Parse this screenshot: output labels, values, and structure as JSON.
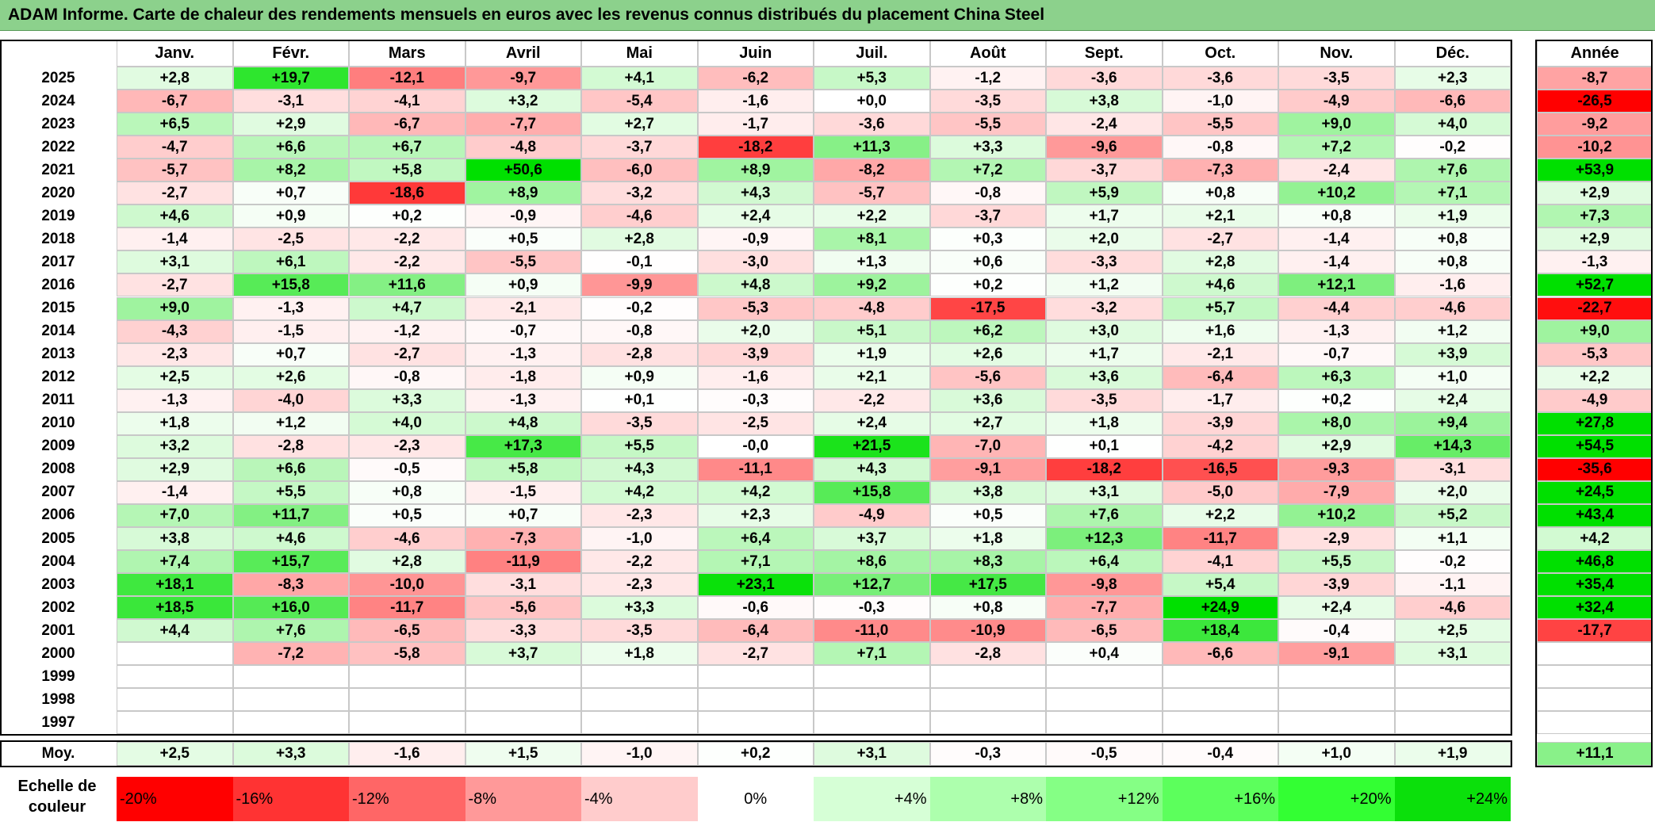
{
  "title": "ADAM Informe. Carte de chaleur des rendements mensuels en euros avec les revenus connus distribués du placement China Steel",
  "chart_data": {
    "type": "heatmap",
    "months": [
      "Janv.",
      "Févr.",
      "Mars",
      "Avril",
      "Mai",
      "Juin",
      "Juil.",
      "Août",
      "Sept.",
      "Oct.",
      "Nov.",
      "Déc."
    ],
    "annual_header": "Année",
    "avg_label": "Moy.",
    "rows": [
      {
        "year": "2025",
        "values": [
          "+2,8",
          "+19,7",
          "-12,1",
          "-9,7",
          "+4,1",
          "-6,2",
          "+5,3",
          "-1,2",
          "-3,6",
          "-3,6",
          "-3,5",
          "+2,3"
        ],
        "annual": "-8,7"
      },
      {
        "year": "2024",
        "values": [
          "-6,7",
          "-3,1",
          "-4,1",
          "+3,2",
          "-5,4",
          "-1,6",
          "+0,0",
          "-3,5",
          "+3,8",
          "-1,0",
          "-4,9",
          "-6,6"
        ],
        "annual": "-26,5"
      },
      {
        "year": "2023",
        "values": [
          "+6,5",
          "+2,9",
          "-6,7",
          "-7,7",
          "+2,7",
          "-1,7",
          "-3,6",
          "-5,5",
          "-2,4",
          "-5,5",
          "+9,0",
          "+4,0"
        ],
        "annual": "-9,2"
      },
      {
        "year": "2022",
        "values": [
          "-4,7",
          "+6,6",
          "+6,7",
          "-4,8",
          "-3,7",
          "-18,2",
          "+11,3",
          "+3,3",
          "-9,6",
          "-0,8",
          "+7,2",
          "-0,2"
        ],
        "annual": "-10,2"
      },
      {
        "year": "2021",
        "values": [
          "-5,7",
          "+8,2",
          "+5,8",
          "+50,6",
          "-6,0",
          "+8,9",
          "-8,2",
          "+7,2",
          "-3,7",
          "-7,3",
          "-2,4",
          "+7,6"
        ],
        "annual": "+53,9"
      },
      {
        "year": "2020",
        "values": [
          "-2,7",
          "+0,7",
          "-18,6",
          "+8,9",
          "-3,2",
          "+4,3",
          "-5,7",
          "-0,8",
          "+5,9",
          "+0,8",
          "+10,2",
          "+7,1"
        ],
        "annual": "+2,9"
      },
      {
        "year": "2019",
        "values": [
          "+4,6",
          "+0,9",
          "+0,2",
          "-0,9",
          "-4,6",
          "+2,4",
          "+2,2",
          "-3,7",
          "+1,7",
          "+2,1",
          "+0,8",
          "+1,9"
        ],
        "annual": "+7,3"
      },
      {
        "year": "2018",
        "values": [
          "-1,4",
          "-2,5",
          "-2,2",
          "+0,5",
          "+2,8",
          "-0,9",
          "+8,1",
          "+0,3",
          "+2,0",
          "-2,7",
          "-1,4",
          "+0,8"
        ],
        "annual": "+2,9"
      },
      {
        "year": "2017",
        "values": [
          "+3,1",
          "+6,1",
          "-2,2",
          "-5,5",
          "-0,1",
          "-3,0",
          "+1,3",
          "+0,6",
          "-3,3",
          "+2,8",
          "-1,4",
          "+0,8"
        ],
        "annual": "-1,3"
      },
      {
        "year": "2016",
        "values": [
          "-2,7",
          "+15,8",
          "+11,6",
          "+0,9",
          "-9,9",
          "+4,8",
          "+9,2",
          "+0,2",
          "+1,2",
          "+4,6",
          "+12,1",
          "-1,6"
        ],
        "annual": "+52,7"
      },
      {
        "year": "2015",
        "values": [
          "+9,0",
          "-1,3",
          "+4,7",
          "-2,1",
          "-0,2",
          "-5,3",
          "-4,8",
          "-17,5",
          "-3,2",
          "+5,7",
          "-4,4",
          "-4,6"
        ],
        "annual": "-22,7"
      },
      {
        "year": "2014",
        "values": [
          "-4,3",
          "-1,5",
          "-1,2",
          "-0,7",
          "-0,8",
          "+2,0",
          "+5,1",
          "+6,2",
          "+3,0",
          "+1,6",
          "-1,3",
          "+1,2"
        ],
        "annual": "+9,0"
      },
      {
        "year": "2013",
        "values": [
          "-2,3",
          "+0,7",
          "-2,7",
          "-1,3",
          "-2,8",
          "-3,9",
          "+1,9",
          "+2,6",
          "+1,7",
          "-2,1",
          "-0,7",
          "+3,9"
        ],
        "annual": "-5,3"
      },
      {
        "year": "2012",
        "values": [
          "+2,5",
          "+2,6",
          "-0,8",
          "-1,8",
          "+0,9",
          "-1,6",
          "+2,1",
          "-5,6",
          "+3,6",
          "-6,4",
          "+6,3",
          "+1,0"
        ],
        "annual": "+2,2"
      },
      {
        "year": "2011",
        "values": [
          "-1,3",
          "-4,0",
          "+3,3",
          "-1,3",
          "+0,1",
          "-0,3",
          "-2,2",
          "+3,6",
          "-3,5",
          "-1,7",
          "+0,2",
          "+2,4"
        ],
        "annual": "-4,9"
      },
      {
        "year": "2010",
        "values": [
          "+1,8",
          "+1,2",
          "+4,0",
          "+4,8",
          "-3,5",
          "-2,5",
          "+2,4",
          "+2,7",
          "+1,8",
          "-3,9",
          "+8,0",
          "+9,4"
        ],
        "annual": "+27,8"
      },
      {
        "year": "2009",
        "values": [
          "+3,2",
          "-2,8",
          "-2,3",
          "+17,3",
          "+5,5",
          "-0,0",
          "+21,5",
          "-7,0",
          "+0,1",
          "-4,2",
          "+2,9",
          "+14,3"
        ],
        "annual": "+54,5"
      },
      {
        "year": "2008",
        "values": [
          "+2,9",
          "+6,6",
          "-0,5",
          "+5,8",
          "+4,3",
          "-11,1",
          "+4,3",
          "-9,1",
          "-18,2",
          "-16,5",
          "-9,3",
          "-3,1"
        ],
        "annual": "-35,6"
      },
      {
        "year": "2007",
        "values": [
          "-1,4",
          "+5,5",
          "+0,8",
          "-1,5",
          "+4,2",
          "+4,2",
          "+15,8",
          "+3,8",
          "+3,1",
          "-5,0",
          "-7,9",
          "+2,0"
        ],
        "annual": "+24,5"
      },
      {
        "year": "2006",
        "values": [
          "+7,0",
          "+11,7",
          "+0,5",
          "+0,7",
          "-2,3",
          "+2,3",
          "-4,9",
          "+0,5",
          "+7,6",
          "+2,2",
          "+10,2",
          "+5,2"
        ],
        "annual": "+43,4"
      },
      {
        "year": "2005",
        "values": [
          "+3,8",
          "+4,6",
          "-4,6",
          "-7,3",
          "-1,0",
          "+6,4",
          "+3,7",
          "+1,8",
          "+12,3",
          "-11,7",
          "-2,9",
          "+1,1"
        ],
        "annual": "+4,2"
      },
      {
        "year": "2004",
        "values": [
          "+7,4",
          "+15,7",
          "+2,8",
          "-11,9",
          "-2,2",
          "+7,1",
          "+8,6",
          "+8,3",
          "+6,4",
          "-4,1",
          "+5,5",
          "-0,2"
        ],
        "annual": "+46,8"
      },
      {
        "year": "2003",
        "values": [
          "+18,1",
          "-8,3",
          "-10,0",
          "-3,1",
          "-2,3",
          "+23,1",
          "+12,7",
          "+17,5",
          "-9,8",
          "+5,4",
          "-3,9",
          "-1,1"
        ],
        "annual": "+35,4"
      },
      {
        "year": "2002",
        "values": [
          "+18,5",
          "+16,0",
          "-11,7",
          "-5,6",
          "+3,3",
          "-0,6",
          "-0,3",
          "+0,8",
          "-7,7",
          "+24,9",
          "+2,4",
          "-4,6"
        ],
        "annual": "+32,4"
      },
      {
        "year": "2001",
        "values": [
          "+4,4",
          "+7,6",
          "-6,5",
          "-3,3",
          "-3,5",
          "-6,4",
          "-11,0",
          "-10,9",
          "-6,5",
          "+18,4",
          "-0,4",
          "+2,5"
        ],
        "annual": "-17,7"
      },
      {
        "year": "2000",
        "values": [
          "",
          "-7,2",
          "-5,8",
          "+3,7",
          "+1,8",
          "-2,7",
          "+7,1",
          "-2,8",
          "+0,4",
          "-6,6",
          "-9,1",
          "+3,1"
        ],
        "annual": ""
      },
      {
        "year": "1999",
        "values": [
          "",
          "",
          "",
          "",
          "",
          "",
          "",
          "",
          "",
          "",
          "",
          ""
        ],
        "annual": ""
      },
      {
        "year": "1998",
        "values": [
          "",
          "",
          "",
          "",
          "",
          "",
          "",
          "",
          "",
          "",
          "",
          ""
        ],
        "annual": ""
      },
      {
        "year": "1997",
        "values": [
          "",
          "",
          "",
          "",
          "",
          "",
          "",
          "",
          "",
          "",
          "",
          ""
        ],
        "annual": ""
      }
    ],
    "averages": {
      "values": [
        "+2,5",
        "+3,3",
        "-1,6",
        "+1,5",
        "-1,0",
        "+0,2",
        "+3,1",
        "-0,3",
        "-0,5",
        "-0,4",
        "+1,0",
        "+1,9"
      ],
      "annual": "+11,1"
    },
    "scale_label": "Echelle de couleur",
    "scale": [
      {
        "label": "-20%",
        "value": -20,
        "color": "#ff0000"
      },
      {
        "label": "-16%",
        "value": -16,
        "color": "#ff3333"
      },
      {
        "label": "-12%",
        "value": -12,
        "color": "#ff6666"
      },
      {
        "label": "-8%",
        "value": -8,
        "color": "#ff9999"
      },
      {
        "label": "-4%",
        "value": -4,
        "color": "#ffcccc"
      },
      {
        "label": "0%",
        "value": 0,
        "color": "#ffffff"
      },
      {
        "label": "+4%",
        "value": 4,
        "color": "#d6ffd6"
      },
      {
        "label": "+8%",
        "value": 8,
        "color": "#adffad"
      },
      {
        "label": "+12%",
        "value": 12,
        "color": "#85ff85"
      },
      {
        "label": "+16%",
        "value": 16,
        "color": "#5cff5c"
      },
      {
        "label": "+20%",
        "value": 20,
        "color": "#33ff33"
      },
      {
        "label": "+24%",
        "value": 24,
        "color": "#0be00b"
      }
    ]
  }
}
